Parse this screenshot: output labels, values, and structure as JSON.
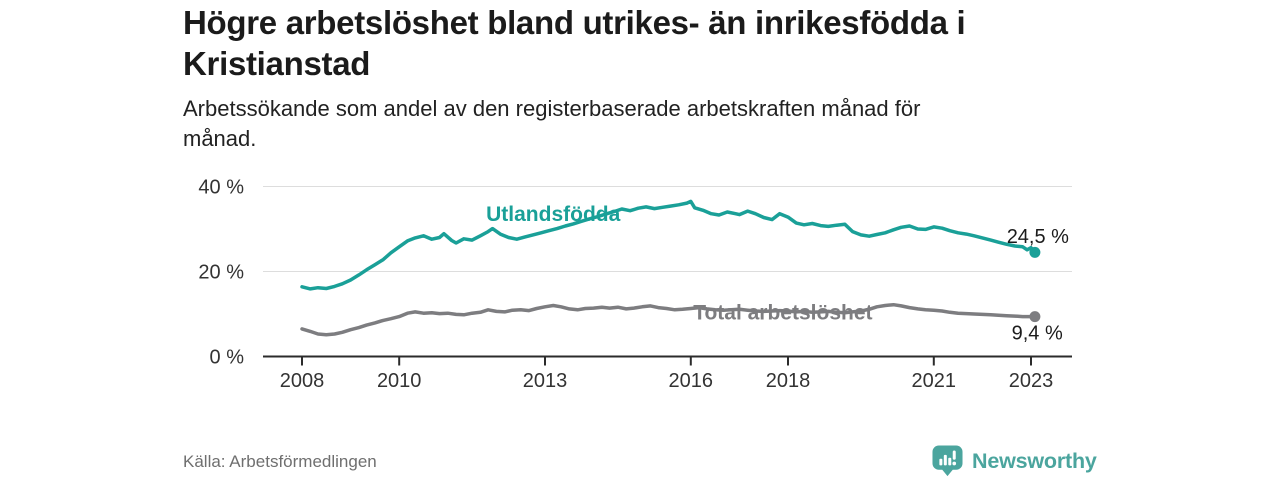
{
  "header": {
    "title": "Högre arbetslöshet bland utrikes- än inrikesfödda i Kristianstad",
    "subtitle": "Arbetssökande som andel av den registerbaserade arbetskraften månad för månad."
  },
  "footer": {
    "source_label": "Källa: Arbetsförmedlingen",
    "brand_name": "Newsworthy",
    "logo_icon": "bar-chart-speech-bubble-icon"
  },
  "colors": {
    "accent_teal": "#1AA098",
    "line_gray": "#7D7D80",
    "logo_teal": "#4BA59E",
    "grid": "#DDDDDD",
    "axis": "#2B2B2B",
    "tick_text": "#333333",
    "value_text": "#1B1B1B"
  },
  "chart_data": {
    "type": "line",
    "title": "Högre arbetslöshet bland utrikes- än inrikesfödda i Kristianstad",
    "subtitle": "Arbetssökande som andel av den registerbaserade arbetskraften månad för månad.",
    "xlabel": "",
    "ylabel": "",
    "x_range": [
      2007.2,
      2023.85
    ],
    "ylim": [
      0,
      40
    ],
    "grid": "horizontal-only",
    "legend_position": "inline-labels",
    "x_axis": {
      "ticks": [
        {
          "value": 2008,
          "label": "2008"
        },
        {
          "value": 2010,
          "label": "2010"
        },
        {
          "value": 2013,
          "label": "2013"
        },
        {
          "value": 2016,
          "label": "2016"
        },
        {
          "value": 2018,
          "label": "2018"
        },
        {
          "value": 2021,
          "label": "2021"
        },
        {
          "value": 2023,
          "label": "2023"
        }
      ]
    },
    "y_axis": {
      "ticks": [
        {
          "value": 0,
          "label": "0 %"
        },
        {
          "value": 20,
          "label": "20 %"
        },
        {
          "value": 40,
          "label": "40 %"
        }
      ]
    },
    "series": [
      {
        "id": "utlandsfodda",
        "name": "Utlandsfödda",
        "color": "#1AA098",
        "end_value": 24.5,
        "end_value_label": "24,5 %",
        "label_anchor": {
          "x": 2014.55,
          "y": 33.6,
          "align": "end"
        },
        "value_label_anchor": {
          "x": 2022.5,
          "y": 28.35
        },
        "points": [
          [
            2008.0,
            16.4
          ],
          [
            2008.17,
            15.9
          ],
          [
            2008.33,
            16.2
          ],
          [
            2008.5,
            16.0
          ],
          [
            2008.67,
            16.5
          ],
          [
            2008.83,
            17.1
          ],
          [
            2009.0,
            18.0
          ],
          [
            2009.17,
            19.2
          ],
          [
            2009.33,
            20.4
          ],
          [
            2009.5,
            21.6
          ],
          [
            2009.67,
            22.8
          ],
          [
            2009.83,
            24.4
          ],
          [
            2010.0,
            25.8
          ],
          [
            2010.17,
            27.2
          ],
          [
            2010.33,
            27.9
          ],
          [
            2010.5,
            28.4
          ],
          [
            2010.67,
            27.6
          ],
          [
            2010.83,
            28.0
          ],
          [
            2010.92,
            28.9
          ],
          [
            2011.08,
            27.3
          ],
          [
            2011.17,
            26.7
          ],
          [
            2011.33,
            27.7
          ],
          [
            2011.5,
            27.4
          ],
          [
            2011.67,
            28.4
          ],
          [
            2011.83,
            29.4
          ],
          [
            2011.92,
            30.1
          ],
          [
            2012.08,
            28.8
          ],
          [
            2012.25,
            28.0
          ],
          [
            2012.42,
            27.6
          ],
          [
            2012.58,
            28.1
          ],
          [
            2012.75,
            28.6
          ],
          [
            2012.92,
            29.1
          ],
          [
            2013.08,
            29.6
          ],
          [
            2013.25,
            30.1
          ],
          [
            2013.42,
            30.7
          ],
          [
            2013.58,
            31.2
          ],
          [
            2013.75,
            31.8
          ],
          [
            2013.92,
            32.4
          ],
          [
            2014.08,
            32.9
          ],
          [
            2014.25,
            33.5
          ],
          [
            2014.42,
            34.1
          ],
          [
            2014.58,
            34.7
          ],
          [
            2014.75,
            34.3
          ],
          [
            2014.92,
            34.9
          ],
          [
            2015.08,
            35.2
          ],
          [
            2015.25,
            34.8
          ],
          [
            2015.42,
            35.1
          ],
          [
            2015.58,
            35.4
          ],
          [
            2015.75,
            35.7
          ],
          [
            2015.92,
            36.1
          ],
          [
            2016.0,
            36.5
          ],
          [
            2016.08,
            35.0
          ],
          [
            2016.25,
            34.4
          ],
          [
            2016.42,
            33.6
          ],
          [
            2016.58,
            33.3
          ],
          [
            2016.75,
            34.0
          ],
          [
            2016.92,
            33.6
          ],
          [
            2017.0,
            33.4
          ],
          [
            2017.17,
            34.2
          ],
          [
            2017.33,
            33.6
          ],
          [
            2017.5,
            32.7
          ],
          [
            2017.67,
            32.2
          ],
          [
            2017.83,
            33.6
          ],
          [
            2018.0,
            32.8
          ],
          [
            2018.17,
            31.4
          ],
          [
            2018.33,
            31.0
          ],
          [
            2018.5,
            31.3
          ],
          [
            2018.67,
            30.8
          ],
          [
            2018.83,
            30.6
          ],
          [
            2019.0,
            30.9
          ],
          [
            2019.17,
            31.1
          ],
          [
            2019.33,
            29.4
          ],
          [
            2019.5,
            28.6
          ],
          [
            2019.67,
            28.3
          ],
          [
            2019.83,
            28.7
          ],
          [
            2020.0,
            29.1
          ],
          [
            2020.17,
            29.8
          ],
          [
            2020.33,
            30.4
          ],
          [
            2020.5,
            30.7
          ],
          [
            2020.67,
            30.0
          ],
          [
            2020.83,
            29.9
          ],
          [
            2021.0,
            30.5
          ],
          [
            2021.17,
            30.2
          ],
          [
            2021.33,
            29.6
          ],
          [
            2021.5,
            29.1
          ],
          [
            2021.67,
            28.8
          ],
          [
            2021.83,
            28.4
          ],
          [
            2022.0,
            27.9
          ],
          [
            2022.17,
            27.4
          ],
          [
            2022.33,
            26.9
          ],
          [
            2022.5,
            26.4
          ],
          [
            2022.67,
            26.0
          ],
          [
            2022.83,
            25.8
          ],
          [
            2022.92,
            25.1
          ],
          [
            2023.0,
            25.6
          ],
          [
            2023.08,
            24.5
          ]
        ]
      },
      {
        "id": "total",
        "name": "Total arbetslöshet",
        "color": "#7D7D80",
        "end_value": 9.4,
        "end_value_label": "9,4 %",
        "label_anchor": {
          "x": 2016.05,
          "y": 10.5,
          "align": "start"
        },
        "value_label_anchor": {
          "x": 2022.6,
          "y": 5.7
        },
        "points": [
          [
            2008.0,
            6.5
          ],
          [
            2008.17,
            5.9
          ],
          [
            2008.33,
            5.3
          ],
          [
            2008.5,
            5.1
          ],
          [
            2008.67,
            5.3
          ],
          [
            2008.83,
            5.7
          ],
          [
            2009.0,
            6.3
          ],
          [
            2009.17,
            6.8
          ],
          [
            2009.33,
            7.4
          ],
          [
            2009.5,
            7.9
          ],
          [
            2009.67,
            8.5
          ],
          [
            2009.83,
            8.9
          ],
          [
            2010.0,
            9.4
          ],
          [
            2010.17,
            10.2
          ],
          [
            2010.33,
            10.5
          ],
          [
            2010.5,
            10.2
          ],
          [
            2010.67,
            10.3
          ],
          [
            2010.83,
            10.1
          ],
          [
            2011.0,
            10.2
          ],
          [
            2011.17,
            9.9
          ],
          [
            2011.33,
            9.8
          ],
          [
            2011.5,
            10.2
          ],
          [
            2011.67,
            10.4
          ],
          [
            2011.83,
            11.0
          ],
          [
            2012.0,
            10.6
          ],
          [
            2012.17,
            10.5
          ],
          [
            2012.33,
            10.9
          ],
          [
            2012.5,
            11.0
          ],
          [
            2012.67,
            10.8
          ],
          [
            2012.83,
            11.3
          ],
          [
            2013.0,
            11.7
          ],
          [
            2013.17,
            12.0
          ],
          [
            2013.33,
            11.7
          ],
          [
            2013.5,
            11.2
          ],
          [
            2013.67,
            11.0
          ],
          [
            2013.83,
            11.3
          ],
          [
            2014.0,
            11.4
          ],
          [
            2014.17,
            11.6
          ],
          [
            2014.33,
            11.4
          ],
          [
            2014.5,
            11.6
          ],
          [
            2014.67,
            11.2
          ],
          [
            2014.83,
            11.4
          ],
          [
            2015.0,
            11.7
          ],
          [
            2015.17,
            11.9
          ],
          [
            2015.33,
            11.5
          ],
          [
            2015.5,
            11.3
          ],
          [
            2015.67,
            11.0
          ],
          [
            2015.83,
            11.1
          ],
          [
            2016.0,
            11.3
          ],
          [
            2016.17,
            11.5
          ],
          [
            2016.33,
            11.2
          ],
          [
            2016.5,
            11.0
          ],
          [
            2016.67,
            10.9
          ],
          [
            2016.83,
            11.0
          ],
          [
            2017.0,
            11.1
          ],
          [
            2017.17,
            10.9
          ],
          [
            2017.33,
            10.7
          ],
          [
            2017.5,
            10.6
          ],
          [
            2017.67,
            10.7
          ],
          [
            2017.83,
            10.8
          ],
          [
            2018.0,
            10.7
          ],
          [
            2018.17,
            10.5
          ],
          [
            2018.33,
            10.6
          ],
          [
            2018.5,
            10.4
          ],
          [
            2018.67,
            10.5
          ],
          [
            2018.83,
            10.6
          ],
          [
            2019.0,
            10.4
          ],
          [
            2019.17,
            10.3
          ],
          [
            2019.33,
            10.5
          ],
          [
            2019.5,
            10.7
          ],
          [
            2019.67,
            11.1
          ],
          [
            2019.83,
            11.7
          ],
          [
            2020.0,
            12.0
          ],
          [
            2020.17,
            12.2
          ],
          [
            2020.33,
            11.9
          ],
          [
            2020.5,
            11.5
          ],
          [
            2020.67,
            11.2
          ],
          [
            2020.83,
            11.0
          ],
          [
            2021.0,
            10.9
          ],
          [
            2021.17,
            10.7
          ],
          [
            2021.33,
            10.4
          ],
          [
            2021.5,
            10.2
          ],
          [
            2021.67,
            10.1
          ],
          [
            2021.83,
            10.0
          ],
          [
            2022.0,
            9.9
          ],
          [
            2022.17,
            9.8
          ],
          [
            2022.33,
            9.7
          ],
          [
            2022.5,
            9.6
          ],
          [
            2022.67,
            9.5
          ],
          [
            2022.83,
            9.4
          ],
          [
            2023.08,
            9.4
          ]
        ]
      }
    ]
  }
}
